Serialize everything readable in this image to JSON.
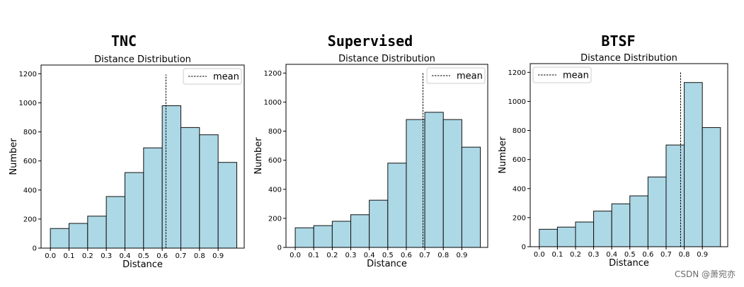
{
  "chart_data": [
    {
      "type": "bar",
      "title": "TNC",
      "subtitle": "Distance Distribution",
      "xlabel": "Distance",
      "ylabel": "Number",
      "xlim": [
        -0.05,
        1.04
      ],
      "ylim": [
        0,
        1260
      ],
      "xticks": [
        "0.0",
        "0.1",
        "0.2",
        "0.3",
        "0.4",
        "0.5",
        "0.6",
        "0.7",
        "0.8",
        "0.9"
      ],
      "yticks": [
        "0",
        "200",
        "400",
        "600",
        "800",
        "1000",
        "1200"
      ],
      "bin_start": 0.0,
      "bin_width": 0.1,
      "values": [
        135,
        170,
        220,
        355,
        520,
        690,
        980,
        830,
        780,
        590
      ],
      "mean": 0.62,
      "mean_top": 1195,
      "legend": {
        "label": "mean",
        "position": "top-right"
      },
      "bar_color": "#add8e6"
    },
    {
      "type": "bar",
      "title": "Supervised",
      "subtitle": "Distance Distribution",
      "xlabel": "Distance",
      "ylabel": "Number",
      "xlim": [
        -0.05,
        1.04
      ],
      "ylim": [
        0,
        1260
      ],
      "xticks": [
        "0.0",
        "0.1",
        "0.2",
        "0.3",
        "0.4",
        "0.5",
        "0.6",
        "0.7",
        "0.8",
        "0.9"
      ],
      "yticks": [
        "0",
        "200",
        "400",
        "600",
        "800",
        "1000",
        "1200"
      ],
      "bin_start": 0.0,
      "bin_width": 0.1,
      "values": [
        135,
        150,
        180,
        225,
        325,
        580,
        880,
        930,
        880,
        690
      ],
      "mean": 0.69,
      "mean_top": 1200,
      "legend": {
        "label": "mean",
        "position": "top-right"
      },
      "bar_color": "#add8e6"
    },
    {
      "type": "bar",
      "title": "BTSF",
      "subtitle": "Distance Distribution",
      "xlabel": "Distance",
      "ylabel": "Number",
      "xlim": [
        -0.05,
        1.04
      ],
      "ylim": [
        0,
        1260
      ],
      "xticks": [
        "0.0",
        "0.1",
        "0.2",
        "0.3",
        "0.4",
        "0.5",
        "0.6",
        "0.7",
        "0.8",
        "0.9"
      ],
      "yticks": [
        "0",
        "200",
        "400",
        "600",
        "800",
        "1000",
        "1200"
      ],
      "bin_start": 0.0,
      "bin_width": 0.1,
      "values": [
        120,
        135,
        170,
        245,
        295,
        350,
        480,
        700,
        1130,
        820
      ],
      "mean": 0.78,
      "mean_top": 1205,
      "legend": {
        "label": "mean",
        "position": "top-left"
      },
      "bar_color": "#add8e6"
    }
  ],
  "watermark": "CSDN @萧宛亦"
}
